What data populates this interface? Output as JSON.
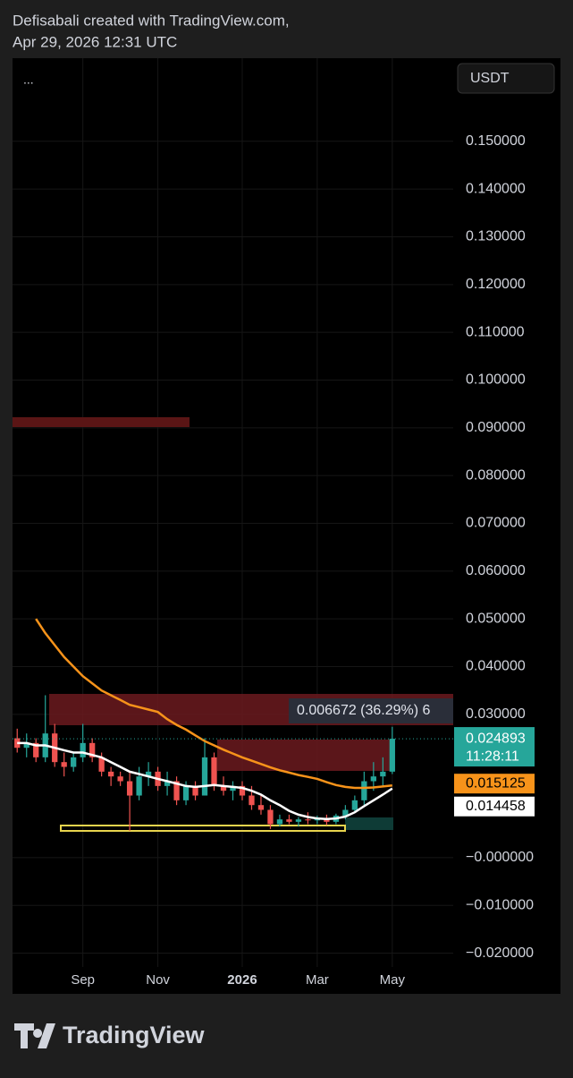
{
  "header": {
    "author_line": "Defisabali created with TradingView.com,",
    "date_line": "Apr 29, 2026 12:31 UTC",
    "menu": "...",
    "currency": "USDT"
  },
  "footer": {
    "brand": "TradingView"
  },
  "chart_data": {
    "type": "candlestick",
    "categories": [
      null,
      null,
      null,
      null,
      null,
      null,
      null,
      "Sep",
      null,
      null,
      null,
      null,
      null,
      null,
      null,
      "Nov",
      null,
      null,
      null,
      null,
      null,
      null,
      null,
      null,
      "2026",
      null,
      null,
      null,
      null,
      null,
      null,
      null,
      "Mar",
      null,
      null,
      null,
      null,
      null,
      null,
      null,
      "May",
      null,
      null,
      null,
      null,
      null,
      null
    ],
    "open": [
      0.025,
      0.023,
      0.024,
      0.021,
      0.026,
      0.02,
      0.019,
      0.021,
      0.024,
      0.021,
      0.018,
      0.017,
      0.016,
      0.013,
      0.017,
      0.018,
      0.015,
      0.016,
      0.012,
      0.015,
      0.013,
      0.021,
      0.015,
      0.014,
      0.015,
      0.013,
      0.011,
      0.01,
      0.007,
      0.008,
      0.0075,
      0.008,
      0.0078,
      0.0082,
      0.0075,
      0.0088,
      0.01,
      0.012,
      0.016,
      0.017,
      0.018,
      null,
      null,
      null,
      null,
      null,
      null
    ],
    "high": [
      0.027,
      0.026,
      0.025,
      0.034,
      0.028,
      0.022,
      0.022,
      0.028,
      0.025,
      0.022,
      0.019,
      0.018,
      0.018,
      0.019,
      0.02,
      0.019,
      0.018,
      0.017,
      0.016,
      0.016,
      0.025,
      0.022,
      0.017,
      0.016,
      0.016,
      0.015,
      0.013,
      0.011,
      0.009,
      0.009,
      0.0085,
      0.0095,
      0.0088,
      0.009,
      0.0092,
      0.011,
      0.013,
      0.018,
      0.02,
      0.021,
      0.0274,
      null,
      null,
      null,
      null,
      null,
      null
    ],
    "low": [
      0.022,
      0.021,
      0.02,
      0.02,
      0.019,
      0.017,
      0.018,
      0.02,
      0.02,
      0.017,
      0.015,
      0.015,
      0.0056,
      0.012,
      0.015,
      0.014,
      0.013,
      0.011,
      0.011,
      0.012,
      0.013,
      0.014,
      0.013,
      0.012,
      0.012,
      0.01,
      0.009,
      0.006,
      0.0065,
      0.007,
      0.0065,
      0.007,
      0.007,
      0.0068,
      0.007,
      0.008,
      0.0095,
      0.011,
      0.014,
      0.015,
      0.0175,
      null,
      null,
      null,
      null,
      null,
      null
    ],
    "close": [
      0.023,
      0.024,
      0.021,
      0.026,
      0.02,
      0.019,
      0.021,
      0.024,
      0.021,
      0.018,
      0.017,
      0.016,
      0.013,
      0.017,
      0.018,
      0.015,
      0.016,
      0.012,
      0.015,
      0.013,
      0.021,
      0.015,
      0.014,
      0.015,
      0.013,
      0.011,
      0.01,
      0.007,
      0.008,
      0.0075,
      0.008,
      0.0078,
      0.0082,
      0.0075,
      0.0088,
      0.01,
      0.012,
      0.016,
      0.017,
      0.018,
      0.024893,
      null,
      null,
      null,
      null,
      null,
      null
    ],
    "up_color": "#26a69a",
    "down_color": "#ef5350",
    "series": [
      {
        "color": "#f7931a",
        "values": [
          null,
          null,
          0.05,
          0.047,
          0.0445,
          0.042,
          0.04,
          0.038,
          0.0365,
          0.035,
          0.034,
          0.033,
          0.032,
          0.0315,
          0.031,
          0.0305,
          0.029,
          0.0278,
          0.0268,
          0.0256,
          0.0244,
          0.0235,
          0.0226,
          0.0218,
          0.021,
          0.0203,
          0.0196,
          0.0189,
          0.0183,
          0.0178,
          0.0173,
          0.0169,
          0.0165,
          0.0158,
          0.0152,
          0.0148,
          0.0146,
          0.0146,
          0.0147,
          0.0149,
          0.015125,
          null,
          null,
          null,
          null,
          null,
          null
        ]
      },
      {
        "color": "#ffffff",
        "values": [
          0.024,
          0.024,
          0.0235,
          0.0235,
          0.023,
          0.0225,
          0.022,
          0.022,
          0.0215,
          0.021,
          0.02,
          0.019,
          0.018,
          0.0175,
          0.017,
          0.0165,
          0.016,
          0.0155,
          0.015,
          0.0148,
          0.015,
          0.0152,
          0.015,
          0.0148,
          0.0146,
          0.014,
          0.0132,
          0.012,
          0.011,
          0.0098,
          0.009,
          0.0085,
          0.0082,
          0.0081,
          0.0082,
          0.0086,
          0.0095,
          0.0108,
          0.012,
          0.0132,
          0.014458,
          null,
          null,
          null,
          null,
          null,
          null
        ]
      }
    ],
    "countdown": "11:28:11",
    "measure_label": "0.006672 (36.29%) 6",
    "ylim": [
      -0.0229,
      0.1674
    ],
    "yticks": [
      {
        "value": 0.15,
        "label": "0.150000"
      },
      {
        "value": 0.14,
        "label": "0.140000"
      },
      {
        "value": 0.13,
        "label": "0.130000"
      },
      {
        "value": 0.12,
        "label": "0.120000"
      },
      {
        "value": 0.11,
        "label": "0.110000"
      },
      {
        "value": 0.1,
        "label": "0.100000"
      },
      {
        "value": 0.09,
        "label": "0.090000"
      },
      {
        "value": 0.08,
        "label": "0.080000"
      },
      {
        "value": 0.07,
        "label": "0.070000"
      },
      {
        "value": 0.06,
        "label": "0.060000"
      },
      {
        "value": 0.05,
        "label": "0.050000"
      },
      {
        "value": 0.04,
        "label": "0.040000"
      },
      {
        "value": 0.03,
        "label": "0.030000"
      },
      {
        "value": 0,
        "label": "−0.000000"
      },
      {
        "value": -0.01,
        "label": "−0.010000"
      },
      {
        "value": -0.02,
        "label": "−0.020000"
      }
    ],
    "grid": true
  }
}
